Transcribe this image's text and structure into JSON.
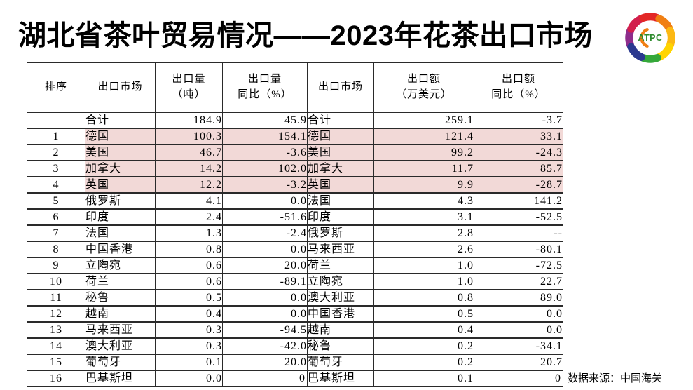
{
  "title": "湖北省茶叶贸易情况——2023年花茶出口市场",
  "logo": {
    "text": "ATPC"
  },
  "source_note": "数据来源：中国海关",
  "colors": {
    "highlight_row": "#f2d9d7",
    "border": "#2a2a2a",
    "logo_red": "#e32726",
    "logo_orange": "#f07f13",
    "logo_amber": "#fcb813",
    "logo_yellow": "#ffd400",
    "logo_green": "#35a83a",
    "logo_blue": "#2b3990",
    "logo_purple": "#8e2d8b",
    "logo_magenta": "#d21f4d",
    "logo_text_green": "#2e8b2e"
  },
  "table": {
    "headers": [
      "排序",
      "出口市场",
      "出口量\n（吨）",
      "出口量\n同比（%）",
      "出口市场",
      "出口额\n（万美元）",
      "出口额\n同比（%）"
    ],
    "rows": [
      {
        "cells": [
          "",
          "合计",
          "184.9",
          "45.9",
          "合计",
          "259.1",
          "-3.7"
        ],
        "highlight": false
      },
      {
        "cells": [
          "1",
          "德国",
          "100.3",
          "154.1",
          "德国",
          "121.4",
          "33.1"
        ],
        "highlight": true
      },
      {
        "cells": [
          "2",
          "美国",
          "46.7",
          "-3.6",
          "美国",
          "99.2",
          "-24.3"
        ],
        "highlight": true
      },
      {
        "cells": [
          "3",
          "加拿大",
          "14.2",
          "102.0",
          "加拿大",
          "11.7",
          "85.7"
        ],
        "highlight": true
      },
      {
        "cells": [
          "4",
          "英国",
          "12.2",
          "-3.2",
          "英国",
          "9.9",
          "-28.7"
        ],
        "highlight": true
      },
      {
        "cells": [
          "5",
          "俄罗斯",
          "4.1",
          "0.0",
          "法国",
          "4.3",
          "141.2"
        ],
        "highlight": false
      },
      {
        "cells": [
          "6",
          "印度",
          "2.4",
          "-51.6",
          "印度",
          "3.1",
          "-52.5"
        ],
        "highlight": false
      },
      {
        "cells": [
          "7",
          "法国",
          "1.3",
          "-2.4",
          "俄罗斯",
          "2.8",
          "--"
        ],
        "highlight": false
      },
      {
        "cells": [
          "8",
          "中国香港",
          "0.8",
          "0.0",
          "马来西亚",
          "2.6",
          "-80.1"
        ],
        "highlight": false
      },
      {
        "cells": [
          "9",
          "立陶宛",
          "0.6",
          "20.0",
          "荷兰",
          "1.0",
          "-72.5"
        ],
        "highlight": false
      },
      {
        "cells": [
          "10",
          "荷兰",
          "0.6",
          "-89.1",
          "立陶宛",
          "1.0",
          "22.7"
        ],
        "highlight": false
      },
      {
        "cells": [
          "11",
          "秘鲁",
          "0.5",
          "0.0",
          "澳大利亚",
          "0.8",
          "89.0"
        ],
        "highlight": false
      },
      {
        "cells": [
          "12",
          "越南",
          "0.4",
          "0.0",
          "中国香港",
          "0.5",
          "0.0"
        ],
        "highlight": false
      },
      {
        "cells": [
          "13",
          "马来西亚",
          "0.3",
          "-94.5",
          "越南",
          "0.4",
          "0.0"
        ],
        "highlight": false
      },
      {
        "cells": [
          "14",
          "澳大利亚",
          "0.3",
          "-42.0",
          "秘鲁",
          "0.2",
          "-34.1"
        ],
        "highlight": false
      },
      {
        "cells": [
          "15",
          "葡萄牙",
          "0.1",
          "20.0",
          "葡萄牙",
          "0.2",
          "20.7"
        ],
        "highlight": false
      },
      {
        "cells": [
          "16",
          "巴基斯坦",
          "0.0",
          "0",
          "巴基斯坦",
          "0.1",
          "0"
        ],
        "highlight": false
      }
    ]
  }
}
